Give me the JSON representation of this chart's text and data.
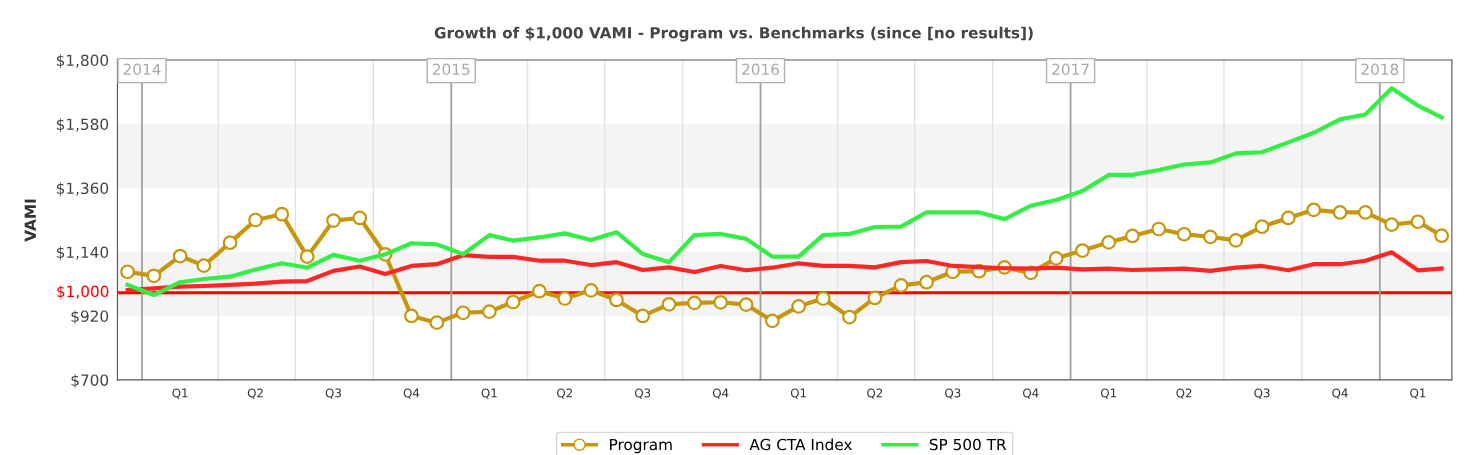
{
  "chart_data": {
    "type": "line",
    "title": "Growth of $1,000 VAMI - Program vs. Benchmarks (since [no results])",
    "ylabel": "VAMI",
    "x": [
      "2013-12-15",
      "2014-01-15",
      "2014-02-15",
      "2014-03-15",
      "2014-04-15",
      "2014-05-15",
      "2014-06-15",
      "2014-07-15",
      "2014-08-15",
      "2014-09-15",
      "2014-10-15",
      "2014-11-15",
      "2014-12-15",
      "2015-01-15",
      "2015-02-15",
      "2015-03-15",
      "2015-04-15",
      "2015-05-15",
      "2015-06-15",
      "2015-07-15",
      "2015-08-15",
      "2015-09-15",
      "2015-10-15",
      "2015-11-15",
      "2015-12-15",
      "2016-01-15",
      "2016-02-15",
      "2016-03-15",
      "2016-04-15",
      "2016-05-15",
      "2016-06-15",
      "2016-07-15",
      "2016-08-15",
      "2016-09-15",
      "2016-10-15",
      "2016-11-15",
      "2016-12-15",
      "2017-01-15",
      "2017-02-15",
      "2017-03-15",
      "2017-04-15",
      "2017-05-15",
      "2017-06-15",
      "2017-07-15",
      "2017-08-15",
      "2017-09-15",
      "2017-10-15",
      "2017-11-15",
      "2017-12-15",
      "2018-01-15",
      "2018-02-15",
      "2018-03-15"
    ],
    "series": [
      {
        "name": "Program",
        "color": "#c8960c",
        "marker": "circle",
        "values": [
          1072,
          1058,
          1126,
          1093,
          1172,
          1250,
          1270,
          1124,
          1248,
          1257,
          1132,
          920,
          897,
          931,
          935,
          968,
          1005,
          980,
          1008,
          975,
          920,
          960,
          965,
          967,
          959,
          903,
          953,
          980,
          916,
          982,
          1025,
          1036,
          1072,
          1074,
          1087,
          1068,
          1118,
          1145,
          1173,
          1195,
          1219,
          1201,
          1192,
          1180,
          1227,
          1257,
          1285,
          1276,
          1276,
          1234,
          1244,
          1196
        ]
      },
      {
        "name": "AG CTA Index",
        "color": "#ff2626",
        "values": [
          1009,
          1015,
          1021,
          1023,
          1027,
          1031,
          1038,
          1040,
          1075,
          1090,
          1064,
          1092,
          1098,
          1129,
          1123,
          1123,
          1110,
          1110,
          1095,
          1105,
          1078,
          1087,
          1071,
          1092,
          1077,
          1086,
          1101,
          1092,
          1092,
          1087,
          1105,
          1109,
          1092,
          1088,
          1084,
          1083,
          1086,
          1080,
          1083,
          1078,
          1080,
          1083,
          1075,
          1086,
          1092,
          1077,
          1098,
          1098,
          1110,
          1139,
          1077,
          1083
        ]
      },
      {
        "name": "SP 500 TR",
        "color": "#33ee44",
        "values": [
          1027,
          992,
          1036,
          1047,
          1055,
          1080,
          1101,
          1086,
          1130,
          1110,
          1132,
          1170,
          1166,
          1132,
          1198,
          1179,
          1190,
          1204,
          1181,
          1208,
          1133,
          1105,
          1198,
          1202,
          1185,
          1124,
          1124,
          1198,
          1202,
          1226,
          1227,
          1276,
          1276,
          1276,
          1253,
          1299,
          1319,
          1350,
          1405,
          1405,
          1422,
          1441,
          1448,
          1479,
          1483,
          1517,
          1550,
          1596,
          1613,
          1703,
          1643,
          1603
        ]
      }
    ],
    "xlim": [
      "2013-12-03",
      "2018-03-27"
    ],
    "xticks": [
      {
        "value": "2014-02-15",
        "label": "Q1"
      },
      {
        "value": "2014-04-01",
        "label": null
      },
      {
        "value": "2014-05-15",
        "label": "Q2"
      },
      {
        "value": "2014-07-01",
        "label": null
      },
      {
        "value": "2014-08-15",
        "label": "Q3"
      },
      {
        "value": "2014-10-01",
        "label": null
      },
      {
        "value": "2014-11-15",
        "label": "Q4"
      },
      {
        "value": "2015-02-15",
        "label": "Q1"
      },
      {
        "value": "2015-04-01",
        "label": null
      },
      {
        "value": "2015-05-15",
        "label": "Q2"
      },
      {
        "value": "2015-07-01",
        "label": null
      },
      {
        "value": "2015-08-15",
        "label": "Q3"
      },
      {
        "value": "2015-10-01",
        "label": null
      },
      {
        "value": "2015-11-15",
        "label": "Q4"
      },
      {
        "value": "2016-02-15",
        "label": "Q1"
      },
      {
        "value": "2016-04-01",
        "label": null
      },
      {
        "value": "2016-05-15",
        "label": "Q2"
      },
      {
        "value": "2016-07-01",
        "label": null
      },
      {
        "value": "2016-08-15",
        "label": "Q3"
      },
      {
        "value": "2016-10-01",
        "label": null
      },
      {
        "value": "2016-11-15",
        "label": "Q4"
      },
      {
        "value": "2017-02-15",
        "label": "Q1"
      },
      {
        "value": "2017-04-01",
        "label": null
      },
      {
        "value": "2017-05-15",
        "label": "Q2"
      },
      {
        "value": "2017-07-01",
        "label": null
      },
      {
        "value": "2017-08-15",
        "label": "Q3"
      },
      {
        "value": "2017-10-01",
        "label": null
      },
      {
        "value": "2017-11-15",
        "label": "Q4"
      },
      {
        "value": "2018-02-15",
        "label": "Q1"
      }
    ],
    "ylim": [
      700,
      1800
    ],
    "yticks": [
      {
        "value": 700,
        "label": "$700"
      },
      {
        "value": 920,
        "label": "$920"
      },
      {
        "value": 1140,
        "label": "$1,140"
      },
      {
        "value": 1360,
        "label": "$1,360"
      },
      {
        "value": 1580,
        "label": "$1,580"
      },
      {
        "value": 1800,
        "label": "$1,800"
      }
    ],
    "ref_lines": [
      {
        "axis": "y",
        "value": 1000,
        "label": "$1,000",
        "color": "#ff0000"
      },
      {
        "axis": "x",
        "value": "2014-01-01",
        "label": "2014",
        "color": "#a0a0a0"
      },
      {
        "axis": "x",
        "value": "2015-01-01",
        "label": "2015",
        "color": "#a0a0a0"
      },
      {
        "axis": "x",
        "value": "2016-01-01",
        "label": "2016",
        "color": "#a0a0a0"
      },
      {
        "axis": "x",
        "value": "2017-01-01",
        "label": "2017",
        "color": "#a0a0a0"
      },
      {
        "axis": "x",
        "value": "2018-01-01",
        "label": "2018",
        "color": "#a0a0a0"
      }
    ],
    "bands": [
      {
        "axis": "y",
        "from": 920,
        "to": 1140,
        "color": "#f4f4f4"
      },
      {
        "axis": "y",
        "from": 1360,
        "to": 1580,
        "color": "#f4f4f4"
      }
    ],
    "grid": "x",
    "legend": "bottom"
  }
}
